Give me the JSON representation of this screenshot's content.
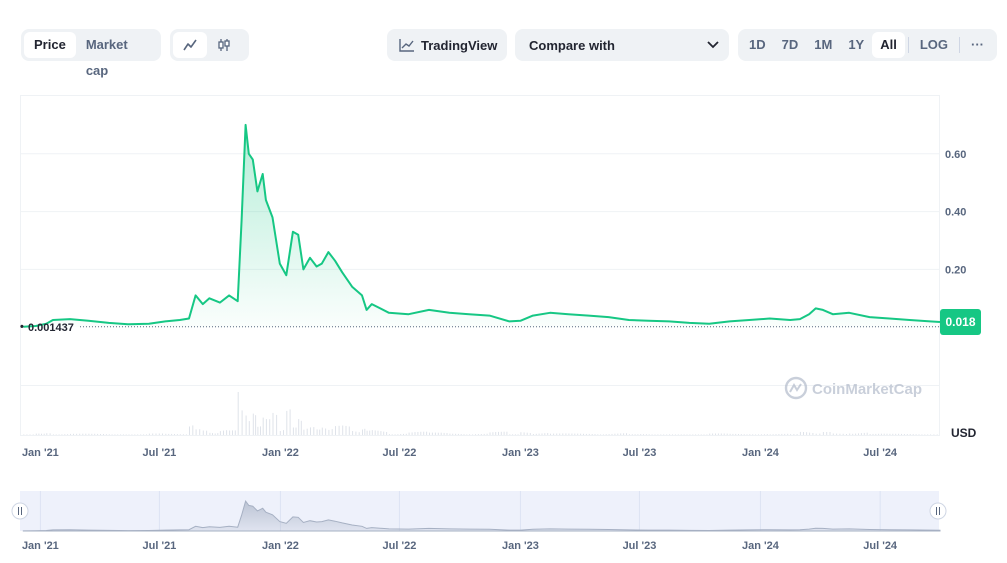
{
  "toolbar": {
    "price_label": "Price",
    "market_cap_label": "Market cap",
    "tradingview_label": "TradingView",
    "compare_label": "Compare with",
    "ranges": [
      "1D",
      "7D",
      "1M",
      "1Y",
      "All"
    ],
    "active_range": "All",
    "log_label": "LOG",
    "more_label": "···"
  },
  "watermark": "CoinMarketCap",
  "colors": {
    "line": "#16c784",
    "accent_label_bg": "#16c784",
    "grid": "#eff2f5",
    "text": "#58667e"
  },
  "chart_data": {
    "type": "line",
    "title": "",
    "xlabel": "",
    "ylabel": "",
    "currency_label": "USD",
    "x_ticks": [
      "Jan '21",
      "Jul '21",
      "Jan '22",
      "Jul '22",
      "Jan '23",
      "Jul '23",
      "Jan '24",
      "Jul '24"
    ],
    "y_ticks": [
      "0.20",
      "0.40",
      "0.60"
    ],
    "ylim": [
      -0.2,
      0.8
    ],
    "xlim": [
      "2020-12-01",
      "2024-09-30"
    ],
    "start_price_label": "0.001437",
    "current_price_label": "0.018",
    "current_price": 0.018,
    "start_price": 0.001437,
    "series": [
      {
        "values": [
          [
            "2020-12-06",
            0.0014
          ],
          [
            "2020-12-25",
            0.004
          ],
          [
            "2021-01-10",
            0.012
          ],
          [
            "2021-01-20",
            0.025
          ],
          [
            "2021-02-15",
            0.028
          ],
          [
            "2021-03-15",
            0.022
          ],
          [
            "2021-04-15",
            0.015
          ],
          [
            "2021-05-15",
            0.01
          ],
          [
            "2021-06-15",
            0.012
          ],
          [
            "2021-07-10",
            0.02
          ],
          [
            "2021-08-01",
            0.025
          ],
          [
            "2021-08-15",
            0.03
          ],
          [
            "2021-08-25",
            0.11
          ],
          [
            "2021-09-05",
            0.08
          ],
          [
            "2021-09-15",
            0.1
          ],
          [
            "2021-10-01",
            0.085
          ],
          [
            "2021-10-15",
            0.11
          ],
          [
            "2021-10-28",
            0.09
          ],
          [
            "2021-11-03",
            0.37
          ],
          [
            "2021-11-09",
            0.7
          ],
          [
            "2021-11-14",
            0.6
          ],
          [
            "2021-11-20",
            0.58
          ],
          [
            "2021-11-27",
            0.47
          ],
          [
            "2021-12-05",
            0.53
          ],
          [
            "2021-12-10",
            0.44
          ],
          [
            "2021-12-20",
            0.38
          ],
          [
            "2021-12-31",
            0.22
          ],
          [
            "2022-01-10",
            0.18
          ],
          [
            "2022-01-20",
            0.33
          ],
          [
            "2022-01-28",
            0.32
          ],
          [
            "2022-02-05",
            0.2
          ],
          [
            "2022-02-15",
            0.24
          ],
          [
            "2022-02-25",
            0.21
          ],
          [
            "2022-03-05",
            0.22
          ],
          [
            "2022-03-15",
            0.26
          ],
          [
            "2022-03-25",
            0.23
          ],
          [
            "2022-04-05",
            0.19
          ],
          [
            "2022-04-20",
            0.14
          ],
          [
            "2022-05-05",
            0.11
          ],
          [
            "2022-05-12",
            0.06
          ],
          [
            "2022-05-20",
            0.08
          ],
          [
            "2022-06-15",
            0.05
          ],
          [
            "2022-07-15",
            0.045
          ],
          [
            "2022-08-15",
            0.06
          ],
          [
            "2022-09-15",
            0.05
          ],
          [
            "2022-10-15",
            0.045
          ],
          [
            "2022-11-15",
            0.04
          ],
          [
            "2022-12-15",
            0.02
          ],
          [
            "2023-01-01",
            0.022
          ],
          [
            "2023-01-20",
            0.04
          ],
          [
            "2023-02-15",
            0.05
          ],
          [
            "2023-03-15",
            0.045
          ],
          [
            "2023-04-15",
            0.04
          ],
          [
            "2023-05-15",
            0.035
          ],
          [
            "2023-06-15",
            0.025
          ],
          [
            "2023-07-15",
            0.022
          ],
          [
            "2023-08-15",
            0.02
          ],
          [
            "2023-09-15",
            0.015
          ],
          [
            "2023-10-15",
            0.012
          ],
          [
            "2023-11-15",
            0.02
          ],
          [
            "2023-12-15",
            0.025
          ],
          [
            "2024-01-15",
            0.03
          ],
          [
            "2024-02-15",
            0.025
          ],
          [
            "2024-03-01",
            0.028
          ],
          [
            "2024-03-15",
            0.045
          ],
          [
            "2024-03-25",
            0.065
          ],
          [
            "2024-04-05",
            0.06
          ],
          [
            "2024-04-20",
            0.045
          ],
          [
            "2024-05-15",
            0.05
          ],
          [
            "2024-06-15",
            0.035
          ],
          [
            "2024-07-15",
            0.03
          ],
          [
            "2024-08-15",
            0.025
          ],
          [
            "2024-09-15",
            0.02
          ],
          [
            "2024-09-30",
            0.018
          ]
        ]
      }
    ],
    "volume_axis": "hidden",
    "grid": true
  }
}
